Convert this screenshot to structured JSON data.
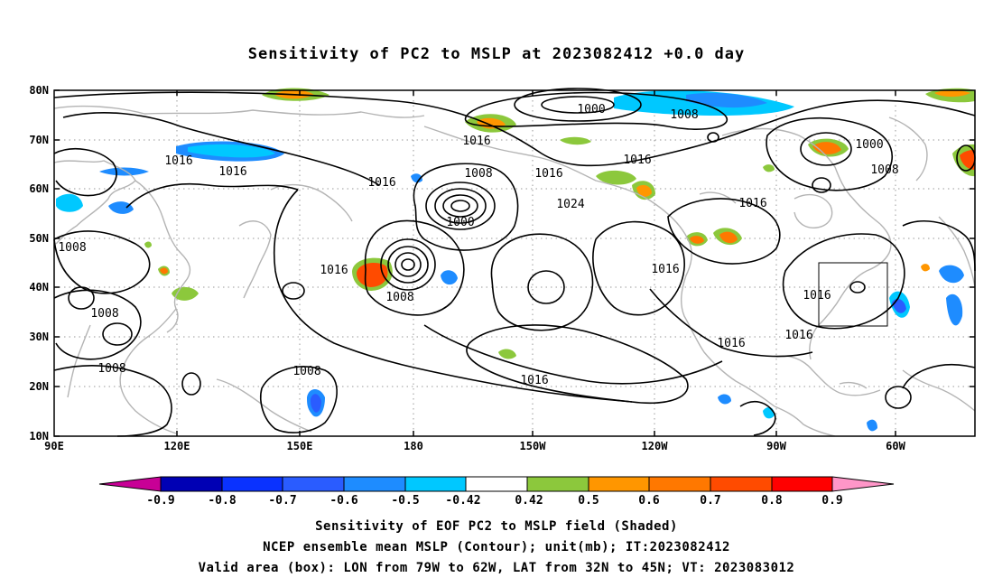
{
  "title": "Sensitivity of PC2 to MSLP at 2023082412 +0.0 day",
  "captions": {
    "line1": "Sensitivity of EOF PC2 to MSLP field (Shaded)",
    "line2": "NCEP ensemble mean MSLP (Contour); unit(mb); IT:2023082412",
    "line3": "Valid area (box): LON from 79W to 62W, LAT from 32N to 45N; VT: 2023083012"
  },
  "axes": {
    "lat_labels": [
      "80N",
      "70N",
      "60N",
      "50N",
      "40N",
      "30N",
      "20N",
      "10N"
    ],
    "lon_labels": [
      "90E",
      "120E",
      "150E",
      "180",
      "150W",
      "120W",
      "90W",
      "60W"
    ]
  },
  "contour_labels": {
    "c1000": "1000",
    "c1008": "1008",
    "c1016": "1016",
    "c1024": "1024"
  },
  "colorbar": {
    "ticks": [
      "-0.9",
      "-0.8",
      "-0.7",
      "-0.6",
      "-0.5",
      "-0.42",
      "0.42",
      "0.5",
      "0.6",
      "0.7",
      "0.8",
      "0.9"
    ],
    "colors": {
      "below": "#c80096",
      "b1": "#0000b4",
      "b2": "#0a32ff",
      "b3": "#2a5cff",
      "b4": "#1e8cff",
      "b5": "#00c8ff",
      "mid": "#ffffff",
      "p1": "#8cc83c",
      "p2": "#ff9600",
      "p3": "#ff7800",
      "p4": "#ff4b00",
      "p5": "#ff0000",
      "above": "#ff96c8"
    }
  }
}
